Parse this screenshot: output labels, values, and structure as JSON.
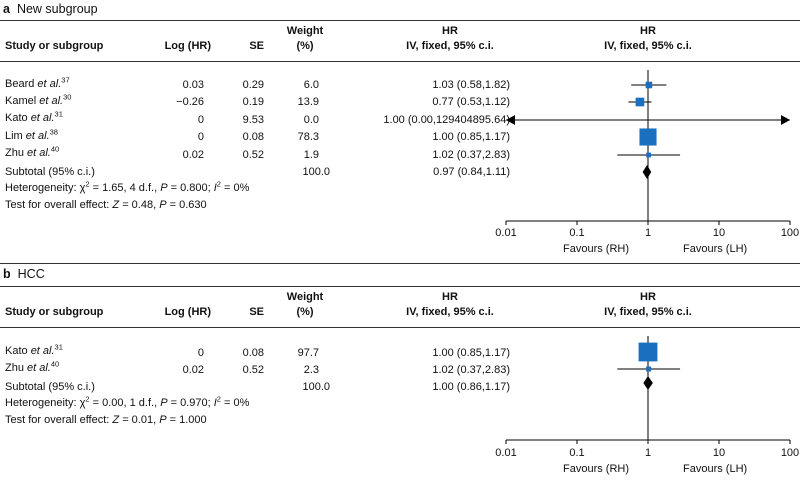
{
  "chart_data": [
    {
      "type": "forest",
      "panel": "a",
      "title": "New subgroup",
      "columns": {
        "study": "Study or subgroup",
        "loghr": "Log (HR)",
        "se": "SE",
        "weight_top": "Weight",
        "weight_bottom": "(%)",
        "hr_top": "HR",
        "hr_bottom": "IV, fixed, 95% c.i.",
        "plot_top": "HR",
        "plot_bottom": "IV, fixed, 95% c.i."
      },
      "studies": [
        {
          "name": "Beard ",
          "etal": "et al.",
          "ref": "37",
          "loghr": "0.03",
          "se": "0.29",
          "weight": "6.0",
          "hr_text": "1.03 (0.58,1.82)",
          "hr": 1.03,
          "lo": 0.58,
          "hi": 1.82,
          "w": 6.0
        },
        {
          "name": "Kamel ",
          "etal": "et al.",
          "ref": "30",
          "loghr": "−0.26",
          "se": "0.19",
          "weight": "13.9",
          "hr_text": "0.77 (0.53,1.12)",
          "hr": 0.77,
          "lo": 0.53,
          "hi": 1.12,
          "w": 13.9
        },
        {
          "name": "Kato ",
          "etal": "et al.",
          "ref": "31",
          "loghr": "0",
          "se": "9.53",
          "weight": "0.0",
          "hr_text": "1.00 (0.00,129404895.64)",
          "hr": 1.0,
          "lo": 0.0,
          "hi": 129404895.64,
          "w": 0.0
        },
        {
          "name": "Lim ",
          "etal": "et al.",
          "ref": "38",
          "loghr": "0",
          "se": "0.08",
          "weight": "78.3",
          "hr_text": "1.00 (0.85,1.17)",
          "hr": 1.0,
          "lo": 0.85,
          "hi": 1.17,
          "w": 78.3
        },
        {
          "name": "Zhu ",
          "etal": "et al.",
          "ref": "40",
          "loghr": "0.02",
          "se": "0.52",
          "weight": "1.9",
          "hr_text": "1.02 (0.37,2.83)",
          "hr": 1.02,
          "lo": 0.37,
          "hi": 2.83,
          "w": 1.9
        }
      ],
      "subtotal": {
        "label": "Subtotal (95% c.i.)",
        "weight": "100.0",
        "hr_text": "0.97 (0.84,1.11)",
        "hr": 0.97,
        "lo": 0.84,
        "hi": 1.11
      },
      "heterogeneity": {
        "prefix": "Heterogeneity: χ",
        "sup": "2",
        "mid": " = 1.65, 4 d.f., ",
        "p_label": "P",
        "p_value": " = 0.800; ",
        "i_label": "I",
        "i_sup": "2",
        "i_value": " = 0%"
      },
      "overall_effect": {
        "prefix": "Test for overall effect: ",
        "z_label": "Z",
        "z_value": " = 0.48, ",
        "p_label": "P",
        "p_value": " = 0.630"
      },
      "axis": {
        "scale": "log",
        "ticks": [
          0.01,
          0.1,
          1,
          10,
          100
        ],
        "tick_labels": [
          "0.01",
          "0.1",
          "1",
          "10",
          "100"
        ],
        "xlim": [
          0.01,
          100
        ],
        "favours_left": "Favours (RH)",
        "favours_right": "Favours (LH)"
      }
    },
    {
      "type": "forest",
      "panel": "b",
      "title": "HCC",
      "columns": {
        "study": "Study or subgroup",
        "loghr": "Log (HR)",
        "se": "SE",
        "weight_top": "Weight",
        "weight_bottom": "(%)",
        "hr_top": "HR",
        "hr_bottom": "IV, fixed, 95% c.i.",
        "plot_top": "HR",
        "plot_bottom": "IV, fixed, 95% c.i."
      },
      "studies": [
        {
          "name": "Kato ",
          "etal": "et al.",
          "ref": "31",
          "loghr": "0",
          "se": "0.08",
          "weight": "97.7",
          "hr_text": "1.00 (0.85,1.17)",
          "hr": 1.0,
          "lo": 0.85,
          "hi": 1.17,
          "w": 97.7
        },
        {
          "name": "Zhu ",
          "etal": "et al.",
          "ref": "40",
          "loghr": "0.02",
          "se": "0.52",
          "weight": "2.3",
          "hr_text": "1.02 (0.37,2.83)",
          "hr": 1.02,
          "lo": 0.37,
          "hi": 2.83,
          "w": 2.3
        }
      ],
      "subtotal": {
        "label": "Subtotal (95% c.i.)",
        "weight": "100.0",
        "hr_text": "1.00 (0.86,1.17)",
        "hr": 1.0,
        "lo": 0.86,
        "hi": 1.17
      },
      "heterogeneity": {
        "prefix": "Heterogeneity: χ",
        "sup": "2",
        "mid": " = 0.00, 1 d.f., ",
        "p_label": "P",
        "p_value": " = 0.970; ",
        "i_label": "I",
        "i_sup": "2",
        "i_value": " = 0%"
      },
      "overall_effect": {
        "prefix": "Test for overall effect: ",
        "z_label": "Z",
        "z_value": " = 0.01, ",
        "p_label": "P",
        "p_value": " = 1.000"
      },
      "axis": {
        "scale": "log",
        "ticks": [
          0.01,
          0.1,
          1,
          10,
          100
        ],
        "tick_labels": [
          "0.01",
          "0.1",
          "1",
          "10",
          "100"
        ],
        "xlim": [
          0.01,
          100
        ],
        "favours_left": "Favours (RH)",
        "favours_right": "Favours (LH)"
      }
    }
  ],
  "colors": {
    "marker": "#1b6fbf",
    "line": "#000000",
    "rule": "#333333"
  }
}
